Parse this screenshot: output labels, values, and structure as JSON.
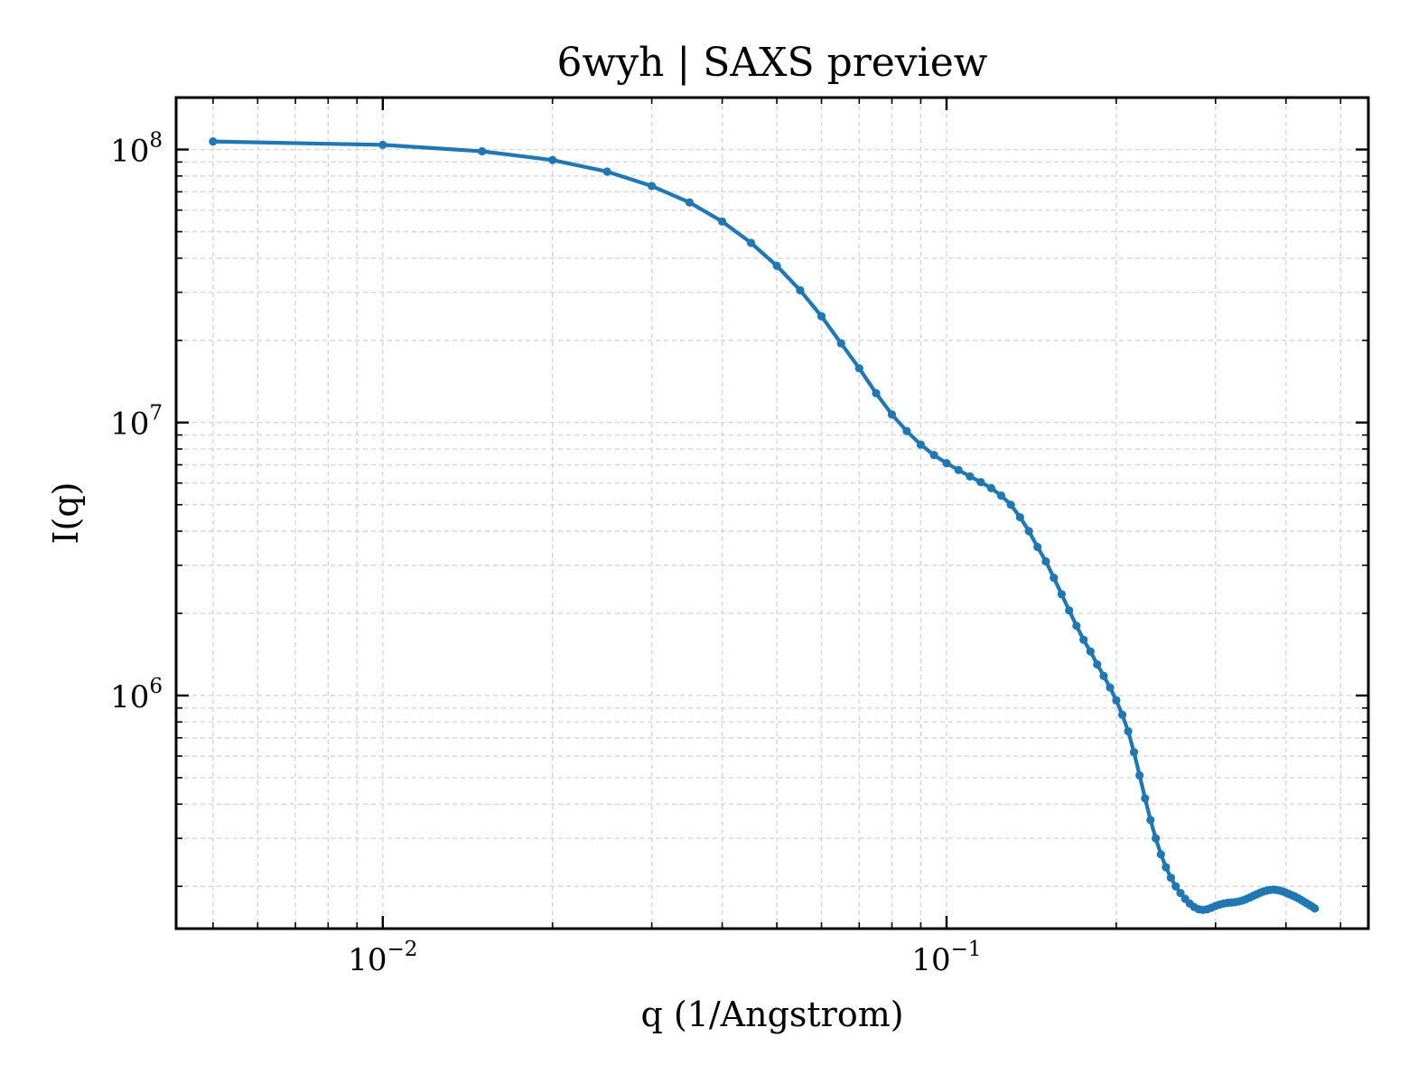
{
  "chart_data": {
    "type": "line",
    "title": "6wyh | SAXS preview",
    "xlabel": "q (1/Angstrom)",
    "ylabel": "I(q)",
    "xscale": "log",
    "yscale": "log",
    "xlim": [
      0.0043,
      0.56
    ],
    "ylim": [
      140000,
      155000000
    ],
    "grid": true,
    "legend": "none",
    "line_color": "#1f77b4",
    "x_ticks": [
      {
        "value": 0.01,
        "base": "10",
        "exp": "−2"
      },
      {
        "value": 0.1,
        "base": "10",
        "exp": "−1"
      }
    ],
    "y_ticks": [
      {
        "value": 1000000,
        "base": "10",
        "exp": "6"
      },
      {
        "value": 10000000,
        "base": "10",
        "exp": "7"
      },
      {
        "value": 100000000,
        "base": "10",
        "exp": "8"
      }
    ],
    "series": [
      {
        "points": [
          [
            0.005,
            107000000
          ],
          [
            0.01,
            104000000
          ],
          [
            0.015,
            98500000
          ],
          [
            0.02,
            91500000
          ],
          [
            0.025,
            83000000
          ],
          [
            0.03,
            73500000
          ],
          [
            0.035,
            64000000
          ],
          [
            0.04,
            54500000
          ],
          [
            0.045,
            45500000
          ],
          [
            0.05,
            37500000
          ],
          [
            0.055,
            30500000
          ],
          [
            0.06,
            24500000
          ],
          [
            0.065,
            19500000
          ],
          [
            0.07,
            15800000
          ],
          [
            0.075,
            12800000
          ],
          [
            0.08,
            10700000
          ],
          [
            0.085,
            9300000
          ],
          [
            0.09,
            8300000
          ],
          [
            0.095,
            7600000
          ],
          [
            0.1,
            7100000
          ],
          [
            0.105,
            6700000
          ],
          [
            0.11,
            6350000
          ],
          [
            0.115,
            6050000
          ],
          [
            0.12,
            5750000
          ],
          [
            0.125,
            5400000
          ],
          [
            0.13,
            5000000
          ],
          [
            0.135,
            4500000
          ],
          [
            0.14,
            4000000
          ],
          [
            0.145,
            3500000
          ],
          [
            0.15,
            3100000
          ],
          [
            0.155,
            2700000
          ],
          [
            0.16,
            2350000
          ],
          [
            0.165,
            2050000
          ],
          [
            0.17,
            1800000
          ],
          [
            0.175,
            1600000
          ],
          [
            0.18,
            1450000
          ],
          [
            0.185,
            1300000
          ],
          [
            0.19,
            1180000
          ],
          [
            0.195,
            1070000
          ],
          [
            0.2,
            960000
          ],
          [
            0.205,
            850000
          ],
          [
            0.21,
            740000
          ],
          [
            0.215,
            620000
          ],
          [
            0.22,
            510000
          ],
          [
            0.225,
            420000
          ],
          [
            0.23,
            350000
          ],
          [
            0.235,
            300000
          ],
          [
            0.24,
            262000
          ],
          [
            0.245,
            235000
          ],
          [
            0.25,
            215000
          ],
          [
            0.255,
            200000
          ],
          [
            0.26,
            189000
          ],
          [
            0.265,
            180000
          ],
          [
            0.27,
            173000
          ],
          [
            0.275,
            168000
          ],
          [
            0.28,
            165000
          ],
          [
            0.285,
            164000
          ],
          [
            0.29,
            165000
          ],
          [
            0.295,
            167000
          ],
          [
            0.3,
            169500
          ],
          [
            0.305,
            171500
          ],
          [
            0.31,
            173000
          ],
          [
            0.315,
            174000
          ],
          [
            0.32,
            174500
          ],
          [
            0.325,
            175000
          ],
          [
            0.33,
            176000
          ],
          [
            0.335,
            177500
          ],
          [
            0.34,
            179500
          ],
          [
            0.345,
            182000
          ],
          [
            0.35,
            184500
          ],
          [
            0.355,
            187000
          ],
          [
            0.36,
            189500
          ],
          [
            0.365,
            191500
          ],
          [
            0.37,
            193000
          ],
          [
            0.375,
            194000
          ],
          [
            0.38,
            194500
          ],
          [
            0.385,
            194000
          ],
          [
            0.39,
            193000
          ],
          [
            0.395,
            191500
          ],
          [
            0.4,
            189500
          ],
          [
            0.405,
            187500
          ],
          [
            0.41,
            185500
          ],
          [
            0.415,
            183500
          ],
          [
            0.42,
            181000
          ],
          [
            0.425,
            178500
          ],
          [
            0.43,
            176000
          ],
          [
            0.435,
            173500
          ],
          [
            0.44,
            171000
          ],
          [
            0.445,
            168500
          ],
          [
            0.45,
            166000
          ]
        ]
      }
    ]
  }
}
